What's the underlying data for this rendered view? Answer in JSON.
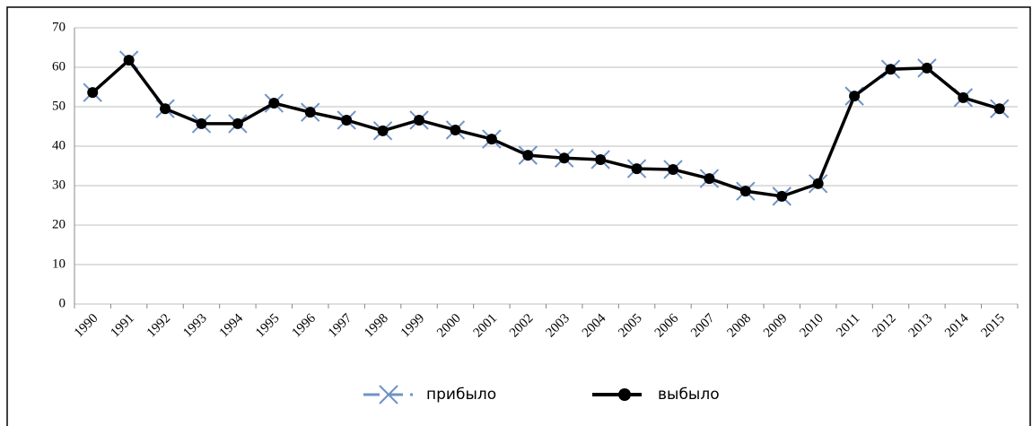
{
  "chart_data": {
    "type": "line",
    "categories": [
      "1990",
      "1991",
      "1992",
      "1993",
      "1994",
      "1995",
      "1996",
      "1997",
      "1998",
      "1999",
      "2000",
      "2001",
      "2002",
      "2003",
      "2004",
      "2005",
      "2006",
      "2007",
      "2008",
      "2009",
      "2010",
      "2011",
      "2012",
      "2013",
      "2014",
      "2015"
    ],
    "series": [
      {
        "name": "прибыло",
        "color": "#6f93c6",
        "marker": "x",
        "values": [
          53.6,
          61.8,
          49.5,
          45.7,
          45.7,
          50.9,
          48.6,
          46.6,
          43.9,
          46.6,
          44.1,
          41.8,
          37.7,
          37.0,
          36.6,
          34.3,
          34.1,
          31.8,
          28.6,
          27.3,
          30.5,
          52.7,
          59.5,
          59.8,
          52.3,
          49.5
        ]
      },
      {
        "name": "выбыло",
        "color": "#000000",
        "marker": "circle",
        "values": [
          53.6,
          61.8,
          49.5,
          45.7,
          45.7,
          50.9,
          48.6,
          46.6,
          43.9,
          46.6,
          44.1,
          41.8,
          37.7,
          37.0,
          36.6,
          34.3,
          34.1,
          31.8,
          28.6,
          27.3,
          30.5,
          52.7,
          59.5,
          59.8,
          52.3,
          49.5
        ]
      }
    ],
    "ylim": [
      0,
      70
    ],
    "yticks": [
      0,
      10,
      20,
      30,
      40,
      50,
      60,
      70
    ],
    "grid": true,
    "legend": "bottom"
  }
}
